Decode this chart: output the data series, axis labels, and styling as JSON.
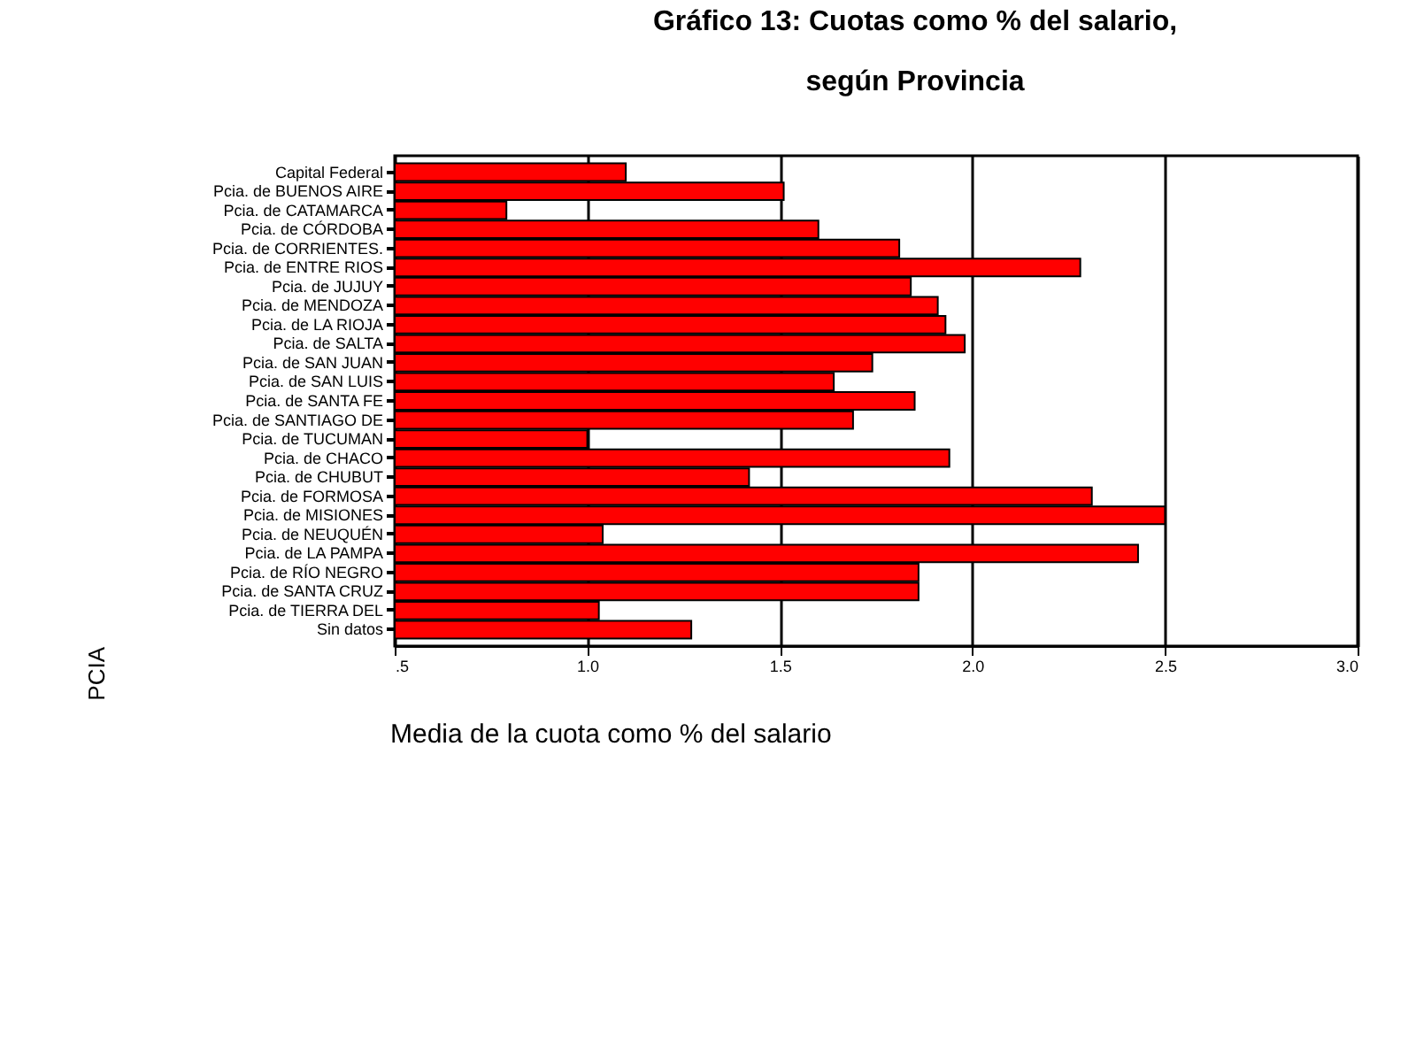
{
  "chart_data": {
    "type": "bar",
    "orientation": "horizontal",
    "title": "Gráfico 13: Cuotas como % del salario,\nsegún Provincia",
    "xlabel": "Media de la cuota como % del salario",
    "ylabel": "PCIA",
    "categories": [
      "Capital Federal",
      "Pcia. de BUENOS AIRE",
      "Pcia. de CATAMARCA",
      "Pcia. de CÓRDOBA",
      "Pcia. de CORRIENTES.",
      "Pcia. de ENTRE RIOS",
      "Pcia. de JUJUY",
      "Pcia. de MENDOZA",
      "Pcia. de LA RIOJA",
      "Pcia. de SALTA",
      "Pcia. de SAN JUAN",
      "Pcia. de SAN LUIS",
      "Pcia. de SANTA FE",
      "Pcia. de SANTIAGO DE",
      "Pcia. de TUCUMAN",
      "Pcia. de CHACO",
      "Pcia. de CHUBUT",
      "Pcia. de FORMOSA",
      "Pcia. de MISIONES",
      "Pcia. de NEUQUÉN",
      "Pcia. de LA PAMPA",
      "Pcia. de RÍO NEGRO",
      "Pcia. de SANTA CRUZ",
      "Pcia. de TIERRA DEL",
      "Sin datos"
    ],
    "values": [
      1.1,
      1.51,
      0.79,
      1.6,
      1.81,
      2.28,
      1.84,
      1.91,
      1.93,
      1.98,
      1.74,
      1.64,
      1.85,
      1.69,
      1.0,
      1.94,
      1.42,
      2.31,
      2.5,
      1.04,
      2.43,
      1.86,
      1.86,
      1.03,
      1.27
    ],
    "color": "#ff0000",
    "xlim": [
      0.5,
      3.0
    ],
    "xticks": [
      {
        "value": 0.5,
        "label": ".5"
      },
      {
        "value": 1.0,
        "label": "1.0"
      },
      {
        "value": 1.5,
        "label": "1.5"
      },
      {
        "value": 2.0,
        "label": "2.0"
      },
      {
        "value": 2.5,
        "label": "2.5"
      },
      {
        "value": 3.0,
        "label": "3.0"
      }
    ],
    "grid": "x"
  }
}
